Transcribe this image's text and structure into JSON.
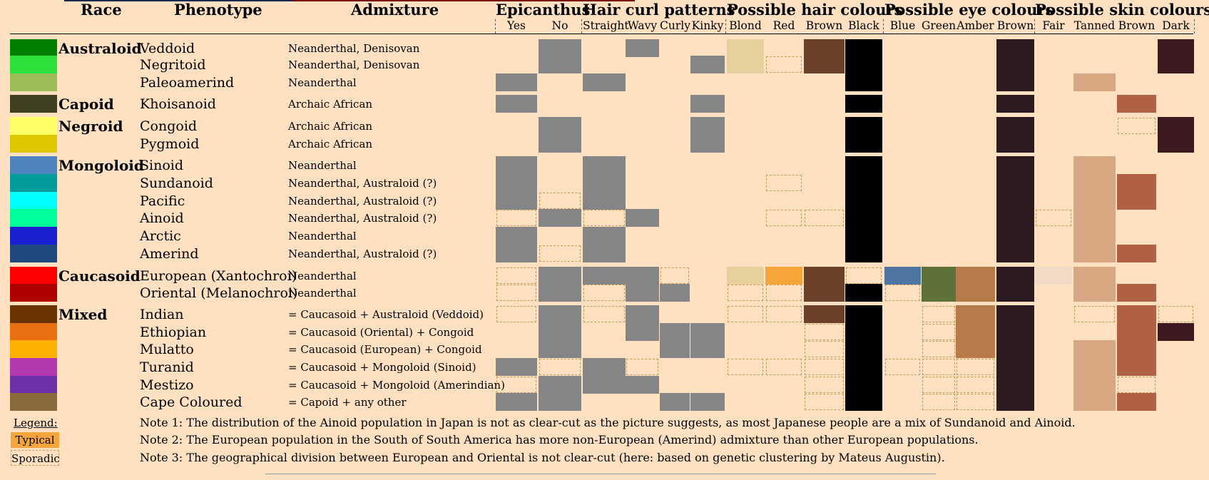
{
  "title_bar_colors": [
    "#1a2a55",
    "#7a0c0c"
  ],
  "columns": {
    "race": "Race",
    "phenotype": "Phenotype",
    "admixture": "Admixture",
    "groups": [
      {
        "label": "Epicanthus",
        "sub": [
          "Yes",
          "No"
        ]
      },
      {
        "label": "Hair curl patterns",
        "sub": [
          "Straight",
          "Wavy",
          "Curly",
          "Kinky"
        ]
      },
      {
        "label": "Possible hair colours",
        "sub": [
          "Blond",
          "Red",
          "Brown",
          "Black"
        ]
      },
      {
        "label": "Possible eye colours",
        "sub": [
          "Blue",
          "Green",
          "Amber",
          "Brown"
        ]
      },
      {
        "label": "Possible skin colours",
        "sub": [
          "Fair",
          "Tanned",
          "Brown",
          "Dark"
        ]
      }
    ]
  },
  "mark_colors": {
    "G": "#858585",
    "b": "#e6d09e",
    "r": "#f6a53a",
    "w": "#6c4028",
    "k": "#000000",
    "u": "#4f76a0",
    "n": "#5e7238",
    "a": "#b87a48",
    "e": "#2b1a20",
    "f": "#f0dcc6",
    "t": "#d8a882",
    "o": "#b06144",
    "d": "#3e1a20"
  },
  "rows": [
    {
      "race": "Australoid",
      "phenotype": "Veddoid",
      "admixture": "Neanderthal, Denisovan",
      "color": "#008000",
      "codes": ". G . G . . b . w k . . . e . . . d"
    },
    {
      "race": "",
      "phenotype": "Negritoid",
      "admixture": "Neanderthal, Denisovan",
      "color": "#2ee03a",
      "codes": ". G . . . G b s w k . . . e . . . d"
    },
    {
      "race": "",
      "phenotype": "Paleoamerind",
      "admixture": "Neanderthal",
      "color": "#9cbc58",
      "codes": "G . G . . . . . . k . . . e . t . ."
    },
    {
      "race": "Capoid",
      "phenotype": "Khoisanoid",
      "admixture": "Archaic African",
      "color": "#3f3f22",
      "codes": "G . . . . G . . . k . . . e . . o ."
    },
    {
      "race": "Negroid",
      "phenotype": "Congoid",
      "admixture": "Archaic African",
      "color": "#ffff66",
      "codes": ". G . . . G . . . k . . . e . . s d"
    },
    {
      "race": "",
      "phenotype": "Pygmoid",
      "admixture": "Archaic African",
      "color": "#e0c800",
      "codes": ". G . . . G . . . k . . . e . . . d"
    },
    {
      "race": "Mongoloid",
      "phenotype": "Sinoid",
      "admixture": "Neanderthal",
      "color": "#4f84c0",
      "codes": "G . G . . . . . . k . . . e . t . ."
    },
    {
      "race": "",
      "phenotype": "Sundanoid",
      "admixture": "Neanderthal, Australoid (?)",
      "color": "#009c9c",
      "codes": "G . G . . . . s . k . . . e . t o ."
    },
    {
      "race": "",
      "phenotype": "Pacific",
      "admixture": "Neanderthal, Australoid (?)",
      "color": "#00ffff",
      "codes": "G s G . . . . . . k . . . e . t o ."
    },
    {
      "race": "",
      "phenotype": "Ainoid",
      "admixture": "Neanderthal, Australoid (?)",
      "color": "#00ff9a",
      "codes": "s G s G . . . s s k . . . e s t . ."
    },
    {
      "race": "",
      "phenotype": "Arctic",
      "admixture": "Neanderthal",
      "color": "#1a20d0",
      "codes": "G . G . . . . . . k . . . e . t . ."
    },
    {
      "race": "",
      "phenotype": "Amerind",
      "admixture": "Neanderthal, Australoid (?)",
      "color": "#1f4a80",
      "codes": "G s G . . . . . . k . . . e . t o ."
    },
    {
      "race": "Caucasoid",
      "phenotype": "European (Xantochroi)",
      "admixture": "Neanderthal",
      "color": "#ff0000",
      "codes": "s G G G s . b r w s u n a e f t . ."
    },
    {
      "race": "",
      "phenotype": "Oriental (Melanochroi)",
      "admixture": "Neanderthal",
      "color": "#b00000",
      "codes": "s G s G G . s s w k s n a e . t o ."
    },
    {
      "race": "Mixed",
      "phenotype": "Indian",
      "admixture": "= Caucasoid + Australoid (Veddoid)",
      "color": "#6b3400",
      "codes": "s G s G . . s s w k . s a e . s o s"
    },
    {
      "race": "",
      "phenotype": "Ethiopian",
      "admixture": "= Caucasoid (Oriental) + Congoid",
      "color": "#e87010",
      "codes": ". G . G G G . . s k . s a e . . o d"
    },
    {
      "race": "",
      "phenotype": "Mulatto",
      "admixture": "= Caucasoid (European) + Congoid",
      "color": "#ffb000",
      "codes": ". G . . G G . . s k . s a e . t o ."
    },
    {
      "race": "",
      "phenotype": "Turanid",
      "admixture": "= Caucasoid + Mongoloid (Sinoid)",
      "color": "#b438b0",
      "codes": "G s G s . . s s s k s s s e . t o ."
    },
    {
      "race": "",
      "phenotype": "Mestizo",
      "admixture": "= Caucasoid + Mongoloid (Amerindian)",
      "color": "#7030a8",
      "codes": "s G G G . . . . s k . s s e . t s ."
    },
    {
      "race": "",
      "phenotype": "Cape Coloured",
      "admixture": "= Capoid + any other",
      "color": "#8a6a3c",
      "codes": "G G . . G G . . s k . s s e . t o ."
    }
  ],
  "legend": {
    "title": "Legend:",
    "typical": "Typical",
    "sporadic": "Sporadic",
    "typical_color": "#f6a53a"
  },
  "notes": [
    "Note 1: The distribution of the Ainoid population in Japan is not as clear-cut as the picture suggests, as most Japanese people are a mix of Sundanoid and Ainoid.",
    "Note 2: The European population in the South of South America has more non-European (Amerind) admixture than other European populations.",
    "Note 3: The geographical division between European and Oriental is not clear-cut (here: based on genetic clustering by Mateus Augustin)."
  ]
}
